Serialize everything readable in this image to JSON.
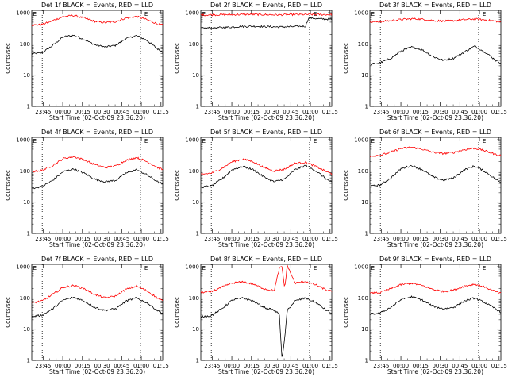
{
  "colors": {
    "events": "#000000",
    "lld": "#ff0000",
    "axes": "#000000",
    "background": "#ffffff"
  },
  "common": {
    "xlabel": "Start Time (02-Oct-09 23:36:20)",
    "ylabel": "Counts/sec",
    "x_ticks": [
      "23:45",
      "00:00",
      "00:15",
      "00:30",
      "00:45",
      "01:00",
      "01:15"
    ],
    "y_ticks": [
      "1",
      "10",
      "100",
      "1000"
    ]
  },
  "chart_data": [
    {
      "type": "line",
      "y_scale": "log",
      "title": "Det 1f BLACK = Events, RED = LLD",
      "x_unit": "minutes after 23:36:20",
      "xlim": [
        0,
        100
      ],
      "ylim": [
        1,
        1200
      ],
      "vlines": [
        8,
        83
      ],
      "e_markers": [
        {
          "x": 1,
          "label": "E"
        },
        {
          "x": 86,
          "label": "E"
        }
      ],
      "series": [
        {
          "name": "Events",
          "color": "#000000",
          "x": [
            0,
            8,
            16,
            24,
            32,
            40,
            48,
            56,
            64,
            72,
            80,
            88,
            96,
            100
          ],
          "y": [
            48,
            52,
            90,
            170,
            190,
            140,
            95,
            80,
            90,
            150,
            185,
            130,
            70,
            55
          ]
        },
        {
          "name": "LLD",
          "color": "#ff0000",
          "x": [
            0,
            8,
            16,
            24,
            32,
            40,
            48,
            56,
            64,
            72,
            80,
            88,
            96,
            100
          ],
          "y": [
            400,
            420,
            560,
            750,
            820,
            680,
            530,
            480,
            520,
            680,
            760,
            600,
            440,
            400
          ]
        }
      ]
    },
    {
      "type": "line",
      "y_scale": "log",
      "title": "Det 2f BLACK = Events, RED = LLD",
      "x_unit": "minutes after 23:36:20",
      "xlim": [
        0,
        100
      ],
      "ylim": [
        1,
        1200
      ],
      "vlines": [
        8,
        83
      ],
      "e_markers": [
        {
          "x": 1,
          "label": "E"
        },
        {
          "x": 86,
          "label": "E"
        }
      ],
      "series": [
        {
          "name": "Events",
          "color": "#000000",
          "x": [
            0,
            10,
            20,
            30,
            40,
            50,
            60,
            70,
            80,
            82,
            84,
            90,
            100
          ],
          "y": [
            320,
            330,
            340,
            360,
            370,
            360,
            350,
            360,
            370,
            650,
            680,
            640,
            620
          ]
        },
        {
          "name": "LLD",
          "color": "#ff0000",
          "x": [
            0,
            10,
            20,
            30,
            40,
            50,
            60,
            70,
            80,
            90,
            100
          ],
          "y": [
            850,
            860,
            870,
            880,
            880,
            870,
            860,
            870,
            880,
            880,
            870
          ]
        }
      ]
    },
    {
      "type": "line",
      "y_scale": "log",
      "title": "Det 3f BLACK = Events, RED = LLD",
      "x_unit": "minutes after 23:36:20",
      "xlim": [
        0,
        100
      ],
      "ylim": [
        1,
        1200
      ],
      "vlines": [
        8,
        83
      ],
      "e_markers": [
        {
          "x": 1,
          "label": "E"
        },
        {
          "x": 86,
          "label": "E"
        }
      ],
      "series": [
        {
          "name": "Events",
          "color": "#000000",
          "x": [
            0,
            8,
            16,
            24,
            32,
            40,
            48,
            56,
            64,
            72,
            80,
            88,
            96,
            100
          ],
          "y": [
            22,
            25,
            35,
            60,
            80,
            65,
            40,
            30,
            35,
            55,
            85,
            55,
            30,
            25
          ]
        },
        {
          "name": "LLD",
          "color": "#ff0000",
          "x": [
            0,
            8,
            16,
            24,
            32,
            40,
            48,
            56,
            64,
            72,
            80,
            88,
            96,
            100
          ],
          "y": [
            500,
            520,
            560,
            610,
            640,
            620,
            570,
            540,
            560,
            600,
            630,
            590,
            540,
            510
          ]
        }
      ]
    },
    {
      "type": "line",
      "y_scale": "log",
      "title": "Det 4f BLACK = Events, RED = LLD",
      "x_unit": "minutes after 23:36:20",
      "xlim": [
        0,
        100
      ],
      "ylim": [
        1,
        1200
      ],
      "vlines": [
        8,
        83
      ],
      "e_markers": [
        {
          "x": 1,
          "label": "E"
        },
        {
          "x": 86,
          "label": "E"
        }
      ],
      "series": [
        {
          "name": "Events",
          "color": "#000000",
          "x": [
            0,
            8,
            16,
            24,
            32,
            40,
            48,
            56,
            64,
            72,
            80,
            88,
            96,
            100
          ],
          "y": [
            28,
            32,
            50,
            95,
            115,
            85,
            55,
            45,
            50,
            85,
            110,
            75,
            45,
            38
          ]
        },
        {
          "name": "LLD",
          "color": "#ff0000",
          "x": [
            0,
            8,
            16,
            24,
            32,
            40,
            48,
            56,
            64,
            72,
            80,
            88,
            96,
            100
          ],
          "y": [
            95,
            105,
            150,
            250,
            290,
            230,
            160,
            130,
            145,
            220,
            270,
            200,
            130,
            110
          ]
        }
      ]
    },
    {
      "type": "line",
      "y_scale": "log",
      "title": "Det 5f BLACK = Events, RED = LLD",
      "x_unit": "minutes after 23:36:20",
      "xlim": [
        0,
        100
      ],
      "ylim": [
        1,
        1200
      ],
      "vlines": [
        8,
        83
      ],
      "e_markers": [
        {
          "x": 1,
          "label": "E"
        },
        {
          "x": 86,
          "label": "E"
        }
      ],
      "series": [
        {
          "name": "Events",
          "color": "#000000",
          "x": [
            0,
            8,
            16,
            24,
            32,
            40,
            48,
            56,
            64,
            72,
            80,
            88,
            96,
            100
          ],
          "y": [
            30,
            33,
            55,
            110,
            140,
            110,
            65,
            45,
            55,
            110,
            150,
            100,
            55,
            42
          ]
        },
        {
          "name": "LLD",
          "color": "#ff0000",
          "x": [
            0,
            8,
            16,
            24,
            32,
            40,
            48,
            56,
            64,
            72,
            80,
            88,
            96,
            100
          ],
          "y": [
            78,
            85,
            120,
            200,
            240,
            200,
            130,
            100,
            115,
            175,
            190,
            140,
            95,
            80
          ]
        }
      ]
    },
    {
      "type": "line",
      "y_scale": "log",
      "title": "Det 6f BLACK = Events, RED = LLD",
      "x_unit": "minutes after 23:36:20",
      "xlim": [
        0,
        100
      ],
      "ylim": [
        1,
        1200
      ],
      "vlines": [
        8,
        83
      ],
      "e_markers": [
        {
          "x": 1,
          "label": "E"
        },
        {
          "x": 86,
          "label": "E"
        }
      ],
      "series": [
        {
          "name": "Events",
          "color": "#000000",
          "x": [
            0,
            8,
            16,
            24,
            32,
            40,
            48,
            56,
            64,
            72,
            80,
            88,
            96,
            100
          ],
          "y": [
            32,
            36,
            60,
            120,
            150,
            110,
            65,
            50,
            60,
            110,
            145,
            95,
            55,
            42
          ]
        },
        {
          "name": "LLD",
          "color": "#ff0000",
          "x": [
            0,
            8,
            16,
            24,
            32,
            40,
            48,
            56,
            64,
            72,
            80,
            88,
            96,
            100
          ],
          "y": [
            300,
            320,
            400,
            530,
            580,
            500,
            400,
            360,
            390,
            480,
            540,
            440,
            340,
            310
          ]
        }
      ]
    },
    {
      "type": "line",
      "y_scale": "log",
      "title": "Det 7f BLACK = Events, RED = LLD",
      "x_unit": "minutes after 23:36:20",
      "xlim": [
        0,
        100
      ],
      "ylim": [
        1,
        1200
      ],
      "vlines": [
        8,
        83
      ],
      "e_markers": [
        {
          "x": 1,
          "label": "E"
        },
        {
          "x": 86,
          "label": "E"
        }
      ],
      "series": [
        {
          "name": "Events",
          "color": "#000000",
          "x": [
            0,
            8,
            16,
            24,
            32,
            40,
            48,
            56,
            64,
            72,
            80,
            88,
            96,
            100
          ],
          "y": [
            25,
            28,
            45,
            85,
            105,
            80,
            50,
            40,
            45,
            80,
            100,
            70,
            40,
            32
          ]
        },
        {
          "name": "LLD",
          "color": "#ff0000",
          "x": [
            0,
            8,
            16,
            24,
            32,
            40,
            48,
            56,
            64,
            72,
            80,
            88,
            96,
            100
          ],
          "y": [
            70,
            80,
            130,
            220,
            250,
            200,
            130,
            100,
            115,
            190,
            240,
            170,
            100,
            80
          ]
        }
      ]
    },
    {
      "type": "line",
      "y_scale": "log",
      "title": "Det 8f BLACK = Events, RED = LLD",
      "x_unit": "minutes after 23:36:20",
      "xlim": [
        0,
        100
      ],
      "ylim": [
        1,
        1200
      ],
      "vlines": [
        8,
        83
      ],
      "e_markers": [
        {
          "x": 1,
          "label": "E"
        },
        {
          "x": 86,
          "label": "E"
        }
      ],
      "series": [
        {
          "name": "Events",
          "color": "#000000",
          "x": [
            0,
            8,
            16,
            24,
            32,
            40,
            48,
            56,
            60,
            62,
            64,
            66,
            72,
            80,
            88,
            96,
            100
          ],
          "y": [
            25,
            27,
            45,
            85,
            100,
            80,
            50,
            40,
            30,
            1,
            5,
            40,
            80,
            100,
            70,
            40,
            32
          ]
        },
        {
          "name": "LLD",
          "color": "#ff0000",
          "x": [
            0,
            8,
            16,
            24,
            32,
            40,
            48,
            56,
            60,
            62,
            64,
            66,
            72,
            80,
            88,
            96,
            100
          ],
          "y": [
            150,
            160,
            220,
            300,
            330,
            280,
            200,
            170,
            900,
            1000,
            200,
            1100,
            300,
            340,
            260,
            180,
            160
          ]
        }
      ]
    },
    {
      "type": "line",
      "y_scale": "log",
      "title": "Det 9f BLACK = Events, RED = LLD",
      "x_unit": "minutes after 23:36:20",
      "xlim": [
        0,
        100
      ],
      "ylim": [
        1,
        1200
      ],
      "vlines": [
        8,
        83
      ],
      "e_markers": [
        {
          "x": 1,
          "label": "E"
        },
        {
          "x": 86,
          "label": "E"
        }
      ],
      "series": [
        {
          "name": "Events",
          "color": "#000000",
          "x": [
            0,
            8,
            16,
            24,
            32,
            40,
            48,
            56,
            64,
            72,
            80,
            88,
            96,
            100
          ],
          "y": [
            30,
            33,
            50,
            90,
            110,
            85,
            55,
            45,
            50,
            80,
            100,
            70,
            45,
            35
          ]
        },
        {
          "name": "LLD",
          "color": "#ff0000",
          "x": [
            0,
            8,
            16,
            24,
            32,
            40,
            48,
            56,
            64,
            72,
            80,
            88,
            96,
            100
          ],
          "y": [
            140,
            150,
            200,
            270,
            300,
            250,
            190,
            160,
            180,
            240,
            280,
            220,
            160,
            140
          ]
        }
      ]
    }
  ]
}
